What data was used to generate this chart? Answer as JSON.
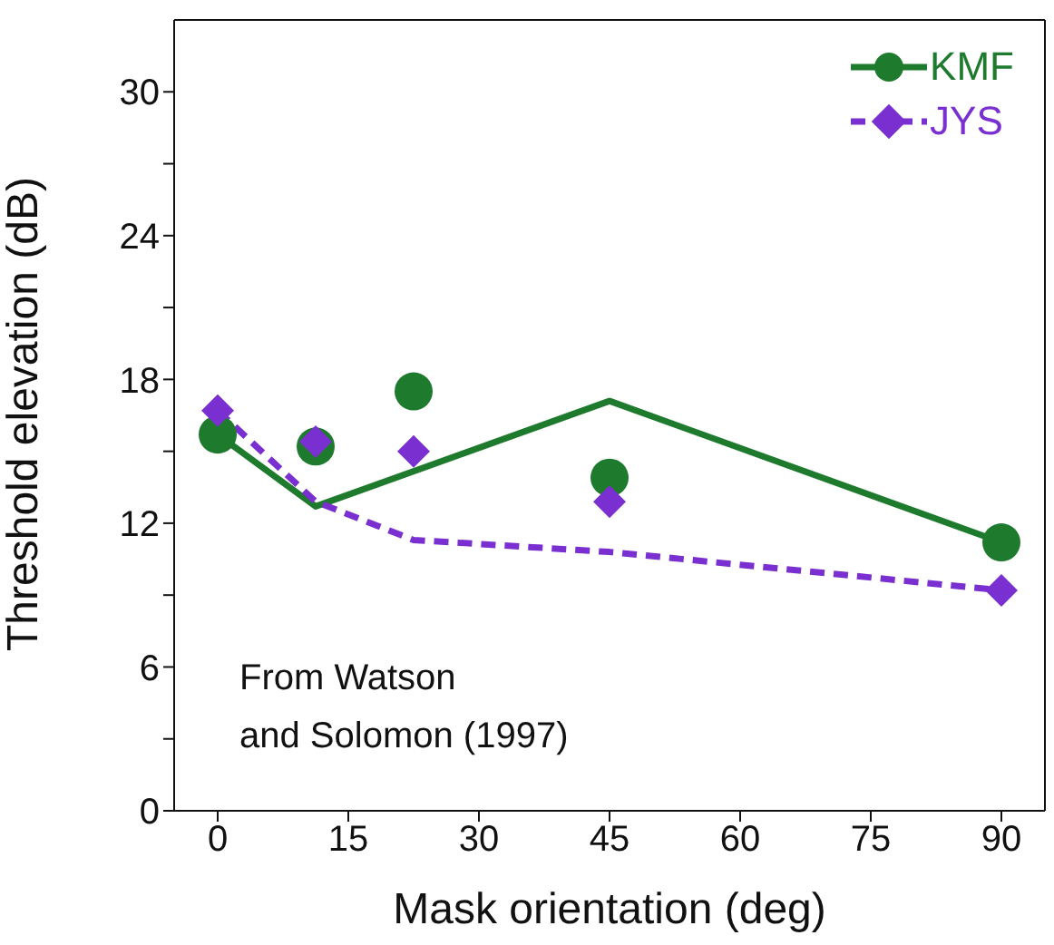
{
  "chart_data": {
    "type": "scatter",
    "xlabel": "Mask orientation (deg)",
    "ylabel": "Threshold elevation (dB)",
    "xlim": [
      -5,
      95
    ],
    "xticks": [
      0,
      15,
      30,
      45,
      60,
      75,
      90
    ],
    "ylim": [
      0,
      33
    ],
    "yticks": [
      0,
      {
        "value": 3,
        "label": null
      },
      6,
      {
        "value": 9,
        "label": null
      },
      12,
      {
        "value": 15,
        "label": null
      },
      18,
      {
        "value": 21,
        "label": null
      },
      24,
      {
        "value": 27,
        "label": null
      },
      30
    ],
    "legend": "top right",
    "annotations": [
      "From Watson\nand Solomon (1997)"
    ],
    "series": [
      {
        "name": "KMF",
        "marker": "circle",
        "line_style": "solid",
        "color": "#1e7b2e",
        "x": [
          0,
          11.25,
          22.5,
          45,
          90
        ],
        "values": [
          15.7,
          15.2,
          17.5,
          13.9,
          11.2
        ]
      },
      {
        "name": "JYS",
        "marker": "diamond",
        "line_style": "dashed",
        "color": "#7a2fd0",
        "x": [
          0,
          11.25,
          22.5,
          45,
          90
        ],
        "values": [
          16.7,
          15.4,
          15.0,
          12.9,
          9.2
        ]
      },
      {
        "type": "line",
        "marker": "none",
        "line_style": "solid",
        "color": "#1e7b2e",
        "x": [
          0,
          11.25,
          45,
          90
        ],
        "values": [
          15.7,
          12.7,
          17.1,
          11.2
        ]
      },
      {
        "type": "line",
        "marker": "none",
        "line_style": "dashed",
        "color": "#7a2fd0",
        "x": [
          0,
          11.25,
          22.5,
          45,
          90
        ],
        "values": [
          16.7,
          12.9,
          11.3,
          10.8,
          9.2
        ]
      }
    ]
  }
}
